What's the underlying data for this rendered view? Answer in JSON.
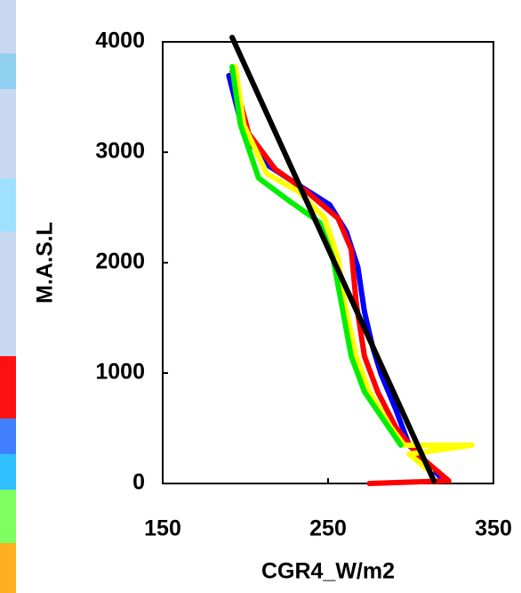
{
  "chart_data": {
    "type": "line",
    "xlabel": "CGR4_W/m2",
    "ylabel": "M.A.S.L",
    "xlim": [
      150,
      350
    ],
    "xticks": [
      150,
      250,
      350
    ],
    "ylim": [
      0,
      4000
    ],
    "yticks": [
      0,
      1000,
      2000,
      3000,
      4000
    ],
    "series": [
      {
        "color": "#0000ff",
        "x": [
          190,
          199,
          213,
          234,
          251,
          261,
          268,
          272,
          277,
          282,
          291,
          299,
          310,
          320
        ],
        "values": [
          3694,
          3169,
          2887,
          2685,
          2524,
          2282,
          1960,
          1556,
          1234,
          992,
          669,
          347,
          185,
          24
        ]
      },
      {
        "color": "#ff0000",
        "x": [
          192,
          202,
          218,
          237,
          256,
          264,
          267,
          272,
          280,
          291,
          304,
          323,
          275
        ],
        "values": [
          3734,
          3169,
          2847,
          2645,
          2403,
          2121,
          1637,
          1153,
          831,
          508,
          266,
          24,
          0
        ]
      },
      {
        "color": "#ffff00",
        "x": [
          194,
          199,
          213,
          232,
          248,
          256,
          260,
          267,
          275,
          288,
          296,
          337,
          299,
          312
        ],
        "values": [
          3774,
          3250,
          2806,
          2645,
          2403,
          2040,
          1637,
          1153,
          831,
          508,
          347,
          347,
          266,
          105
        ]
      },
      {
        "color": "#00ee00",
        "x": [
          192,
          197,
          208,
          226,
          245,
          253,
          258,
          264,
          272,
          283,
          294
        ],
        "values": [
          3774,
          3250,
          2766,
          2565,
          2363,
          2040,
          1637,
          1153,
          831,
          589,
          347
        ]
      },
      {
        "color": "#000000",
        "x": [
          192,
          314
        ],
        "values": [
          4040,
          24
        ]
      }
    ]
  }
}
